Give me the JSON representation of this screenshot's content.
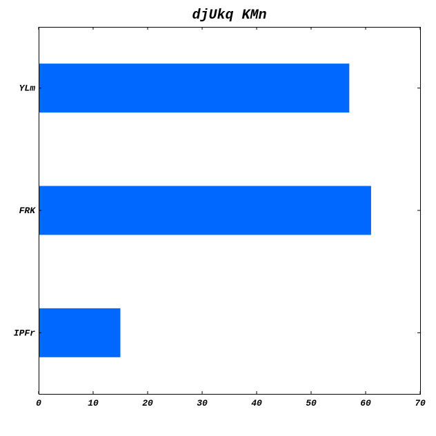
{
  "chart_data": {
    "type": "bar",
    "orientation": "horizontal",
    "title": "djUkq KMn",
    "xlabel": "",
    "ylabel": "",
    "categories": [
      "YLm",
      "FRK",
      "IPFr"
    ],
    "values": [
      57,
      61,
      15
    ],
    "xlim": [
      0,
      70
    ],
    "xticks": [
      0,
      10,
      20,
      30,
      40,
      50,
      60,
      70
    ],
    "xtick_labels": [
      "0",
      "10",
      "20",
      "30",
      "40",
      "50",
      "60",
      "70"
    ],
    "bar_color": "#0068ff",
    "grid": false,
    "legend": "none"
  }
}
